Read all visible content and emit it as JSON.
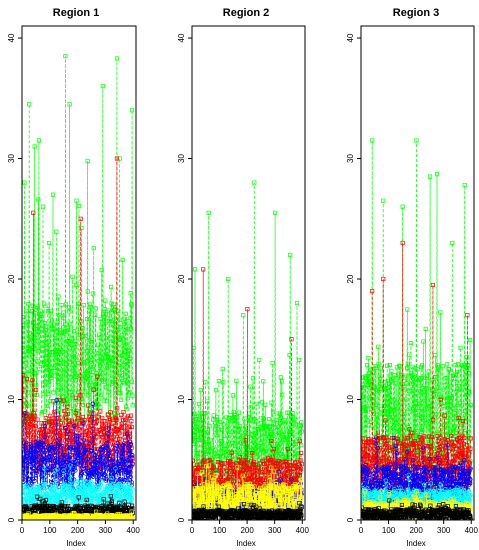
{
  "chart_data": [
    {
      "type": "line",
      "title": "Region 1",
      "xlabel": "Index",
      "ylabel": "",
      "xlim": [
        0,
        410
      ],
      "ylim": [
        0,
        41
      ],
      "xticks": [
        0,
        100,
        200,
        300,
        400
      ],
      "yticks": [
        0,
        10,
        20,
        30,
        40
      ],
      "series": [
        {
          "color": "#00ff00",
          "marker": "square",
          "linestyle": "dashed",
          "n": 400,
          "typical": [
            8,
            18
          ],
          "peaks": [
            [
              8,
              28
            ],
            [
              25,
              34.5
            ],
            [
              45,
              31
            ],
            [
              60,
              31.5
            ],
            [
              75,
              26
            ],
            [
              110,
              27
            ],
            [
              155,
              38.5
            ],
            [
              170,
              34.5
            ],
            [
              195,
              26.5
            ],
            [
              235,
              29.8
            ],
            [
              290,
              36
            ],
            [
              340,
              38.3
            ],
            [
              350,
              30
            ],
            [
              395,
              34
            ]
          ]
        },
        {
          "color": "#ff0000",
          "marker": "square",
          "linestyle": "dashed",
          "n": 400,
          "typical": [
            4,
            9
          ],
          "peaks": [
            [
              40,
              25.5
            ],
            [
              210,
              25
            ],
            [
              340,
              30
            ]
          ]
        },
        {
          "color": "#0000ff",
          "marker": "circle",
          "linestyle": "dashed",
          "n": 400,
          "typical": [
            2.5,
            6.5
          ],
          "peaks": []
        },
        {
          "color": "#00ffff",
          "marker": "circle",
          "linestyle": "dashed",
          "n": 400,
          "typical": [
            1,
            3
          ],
          "peaks": []
        },
        {
          "color": "#000000",
          "marker": "square",
          "linestyle": "dashed",
          "n": 400,
          "typical": [
            0,
            1.2
          ],
          "peaks": []
        },
        {
          "color": "#ffff00",
          "marker": "square",
          "linestyle": "solid",
          "n": 400,
          "typical": [
            0,
            0.4
          ],
          "peaks": []
        }
      ]
    },
    {
      "type": "line",
      "title": "Region 2",
      "xlabel": "Index",
      "ylabel": "",
      "xlim": [
        0,
        410
      ],
      "ylim": [
        0,
        41
      ],
      "xticks": [
        0,
        100,
        200,
        300,
        400
      ],
      "yticks": [
        0,
        10,
        20,
        30,
        40
      ],
      "series": [
        {
          "color": "#00ff00",
          "marker": "square",
          "linestyle": "dashed",
          "n": 400,
          "typical": [
            2.5,
            9
          ],
          "peaks": [
            [
              10,
              20.8
            ],
            [
              60,
              25.5
            ],
            [
              130,
              20
            ],
            [
              185,
              17
            ],
            [
              225,
              28
            ],
            [
              300,
              25.5
            ],
            [
              355,
              22
            ],
            [
              380,
              18
            ]
          ]
        },
        {
          "color": "#ff0000",
          "marker": "square",
          "linestyle": "dashed",
          "n": 400,
          "typical": [
            1.5,
            5
          ],
          "peaks": [
            [
              40,
              20.8
            ],
            [
              200,
              17.5
            ],
            [
              360,
              15
            ]
          ]
        },
        {
          "color": "#0000ff",
          "marker": "circle",
          "linestyle": "dashed",
          "n": 400,
          "typical": [
            0.5,
            2.5
          ],
          "peaks": []
        },
        {
          "color": "#ffff00",
          "marker": "square",
          "linestyle": "solid",
          "n": 400,
          "typical": [
            0.3,
            3
          ],
          "peaks": []
        },
        {
          "color": "#000000",
          "marker": "square",
          "linestyle": "dashed",
          "n": 400,
          "typical": [
            0,
            0.8
          ],
          "peaks": []
        }
      ]
    },
    {
      "type": "line",
      "title": "Region 3",
      "xlabel": "Index",
      "ylabel": "",
      "xlim": [
        0,
        410
      ],
      "ylim": [
        0,
        41
      ],
      "xticks": [
        0,
        100,
        200,
        300,
        400
      ],
      "yticks": [
        0,
        10,
        20,
        30,
        40
      ],
      "series": [
        {
          "color": "#00ff00",
          "marker": "square",
          "linestyle": "dashed",
          "n": 400,
          "typical": [
            4,
            13
          ],
          "peaks": [
            [
              40,
              31.5
            ],
            [
              80,
              26.5
            ],
            [
              150,
              26
            ],
            [
              200,
              31.5
            ],
            [
              250,
              28.5
            ],
            [
              275,
              28.7
            ],
            [
              330,
              23
            ],
            [
              375,
              27.8
            ]
          ]
        },
        {
          "color": "#ff0000",
          "marker": "square",
          "linestyle": "dashed",
          "n": 400,
          "typical": [
            2.5,
            7
          ],
          "peaks": [
            [
              40,
              19
            ],
            [
              80,
              20
            ],
            [
              150,
              23
            ],
            [
              260,
              19.5
            ],
            [
              385,
              17
            ]
          ]
        },
        {
          "color": "#0000ff",
          "marker": "circle",
          "linestyle": "dashed",
          "n": 400,
          "typical": [
            1.5,
            4.5
          ],
          "peaks": []
        },
        {
          "color": "#00ffff",
          "marker": "circle",
          "linestyle": "dashed",
          "n": 400,
          "typical": [
            1,
            2.5
          ],
          "peaks": []
        },
        {
          "color": "#ffff00",
          "marker": "square",
          "linestyle": "solid",
          "n": 400,
          "typical": [
            0.2,
            1.5
          ],
          "peaks": []
        },
        {
          "color": "#000000",
          "marker": "square",
          "linestyle": "dashed",
          "n": 400,
          "typical": [
            0,
            0.9
          ],
          "peaks": []
        }
      ]
    }
  ]
}
